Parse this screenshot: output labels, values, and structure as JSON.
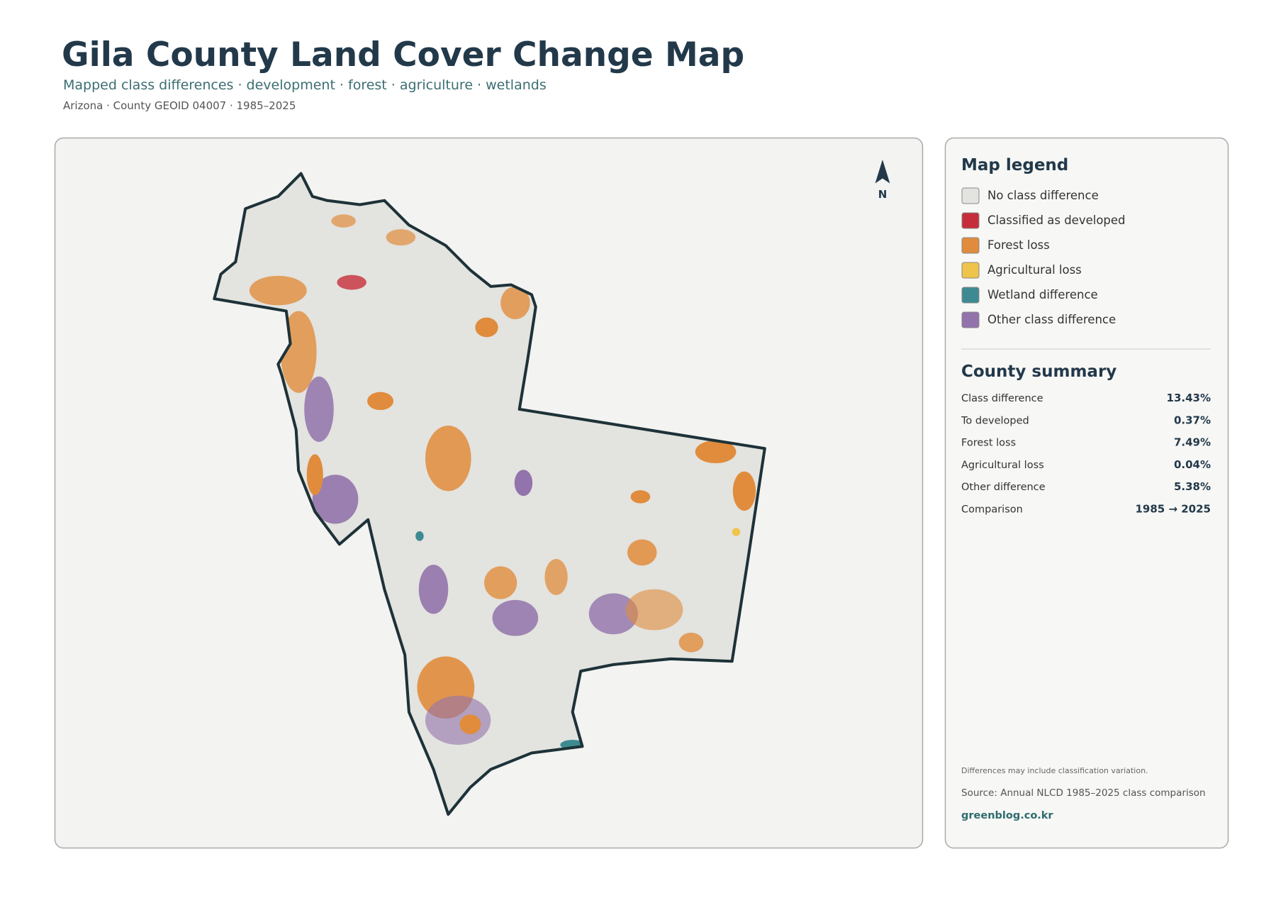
{
  "header": {
    "title": "Gila County Land Cover Change Map",
    "subtitle": "Mapped class differences · development · forest · agriculture · wetlands",
    "meta": "Arizona · County GEOID 04007 · 1985–2025"
  },
  "map": {
    "north": "N"
  },
  "legend": {
    "title": "Map legend",
    "items": [
      {
        "label": "No class difference",
        "color": "#e3e3df"
      },
      {
        "label": "Classified as developed",
        "color": "#c62d3a"
      },
      {
        "label": "Forest loss",
        "color": "#e08c3c"
      },
      {
        "label": "Agricultural loss",
        "color": "#efc44a"
      },
      {
        "label": "Wetland difference",
        "color": "#3e8a92"
      },
      {
        "label": "Other class difference",
        "color": "#9273ab"
      }
    ]
  },
  "summary": {
    "title": "County summary",
    "rows": [
      [
        "Class difference",
        "13.43%"
      ],
      [
        "To developed",
        "0.37%"
      ],
      [
        "Forest loss",
        "7.49%"
      ],
      [
        "Agricultural loss",
        "0.04%"
      ],
      [
        "Other difference",
        "5.38%"
      ],
      [
        "Comparison",
        "1985 → 2025"
      ]
    ]
  },
  "notes": {
    "disclaimer": "Differences may include classification variation.",
    "source": "Source: Annual NLCD 1985–2025 class comparison",
    "credit": "greenblog.co.kr"
  }
}
